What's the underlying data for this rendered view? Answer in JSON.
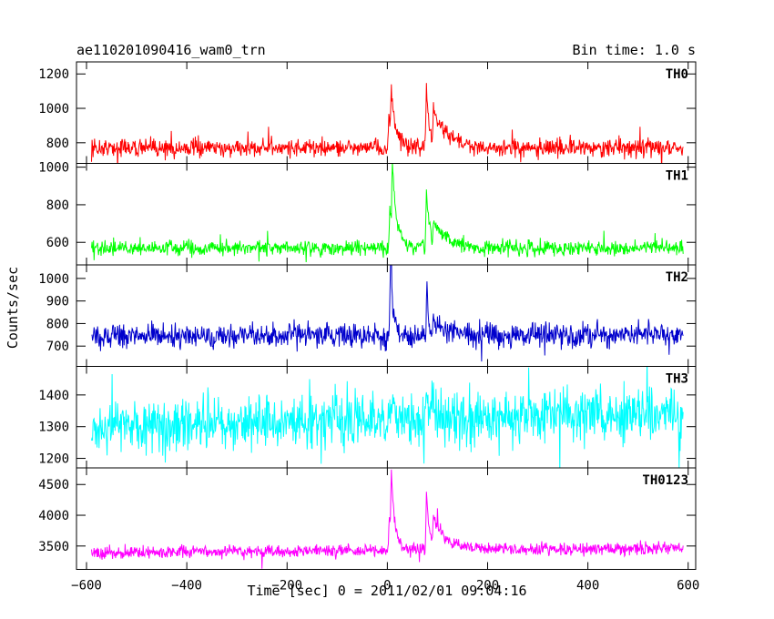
{
  "chart_data": {
    "type": "line",
    "title": "ae110201090416_wam0_trn",
    "bin_time_label": "Bin time: 1.0 s",
    "xlabel": "Time [sec] 0 = 2011/02/01 09:04:16",
    "ylabel": "Counts/sec",
    "xlim": [
      -620,
      615
    ],
    "x_ticks": [
      -600,
      -400,
      -200,
      0,
      200,
      400,
      600
    ],
    "x_tick_labels": [
      "−600",
      "−400",
      "−200",
      "0",
      "200",
      "400",
      "600"
    ],
    "x_range": [
      -590,
      590
    ],
    "grid": false,
    "legend": "none",
    "panels": [
      {
        "name": "TH0",
        "color": "#ff0000",
        "ylim": [
          680,
          1270
        ],
        "y_ticks": [
          800,
          1000,
          1200
        ],
        "y_tick_labels": [
          "800",
          "1000",
          "1200"
        ],
        "baseline": 770,
        "noise": 35,
        "drift": 0,
        "peaks": [
          {
            "t": 3,
            "height": 180,
            "width": 12
          },
          {
            "t": 8,
            "height": 230,
            "width": 6
          },
          {
            "t": 78,
            "height": 350,
            "width": 6
          },
          {
            "t": 92,
            "height": 200,
            "width": 30
          }
        ]
      },
      {
        "name": "TH1",
        "color": "#00ff00",
        "ylim": [
          480,
          1020
        ],
        "y_ticks": [
          600,
          800,
          1000
        ],
        "y_tick_labels": [
          "600",
          "800",
          "1000"
        ],
        "baseline": 570,
        "noise": 25,
        "drift": 0,
        "peaks": [
          {
            "t": 5,
            "height": 200,
            "width": 12
          },
          {
            "t": 10,
            "height": 330,
            "width": 7
          },
          {
            "t": 78,
            "height": 300,
            "width": 6
          },
          {
            "t": 92,
            "height": 130,
            "width": 28
          }
        ]
      },
      {
        "name": "TH2",
        "color": "#0000cc",
        "ylim": [
          610,
          1060
        ],
        "y_ticks": [
          700,
          800,
          900,
          1000
        ],
        "y_tick_labels": [
          "700",
          "800",
          "900",
          "1000"
        ],
        "baseline": 745,
        "noise": 35,
        "drift": 5,
        "peaks": [
          {
            "t": 5,
            "height": 110,
            "width": 10
          },
          {
            "t": 7,
            "height": 270,
            "width": 3
          },
          {
            "t": 79,
            "height": 230,
            "width": 3
          },
          {
            "t": 92,
            "height": 60,
            "width": 25
          }
        ]
      },
      {
        "name": "TH3",
        "color": "#00ffff",
        "ylim": [
          1170,
          1490
        ],
        "y_ticks": [
          1200,
          1300,
          1400
        ],
        "y_tick_labels": [
          "1200",
          "1300",
          "1400"
        ],
        "baseline": 1300,
        "noise": 55,
        "drift": 45,
        "peaks": [
          {
            "t": 5,
            "height": 70,
            "width": 15
          },
          {
            "t": 78,
            "height": 60,
            "width": 15
          }
        ]
      },
      {
        "name": "TH0123",
        "color": "#ff00ff",
        "ylim": [
          3120,
          4770
        ],
        "y_ticks": [
          3500,
          4000,
          4500
        ],
        "y_tick_labels": [
          "3500",
          "4000",
          "4500"
        ],
        "baseline": 3390,
        "noise": 70,
        "drift": 80,
        "peaks": [
          {
            "t": 4,
            "height": 500,
            "width": 12
          },
          {
            "t": 8,
            "height": 900,
            "width": 6
          },
          {
            "t": 78,
            "height": 1000,
            "width": 6
          },
          {
            "t": 92,
            "height": 450,
            "width": 30
          }
        ]
      }
    ]
  }
}
